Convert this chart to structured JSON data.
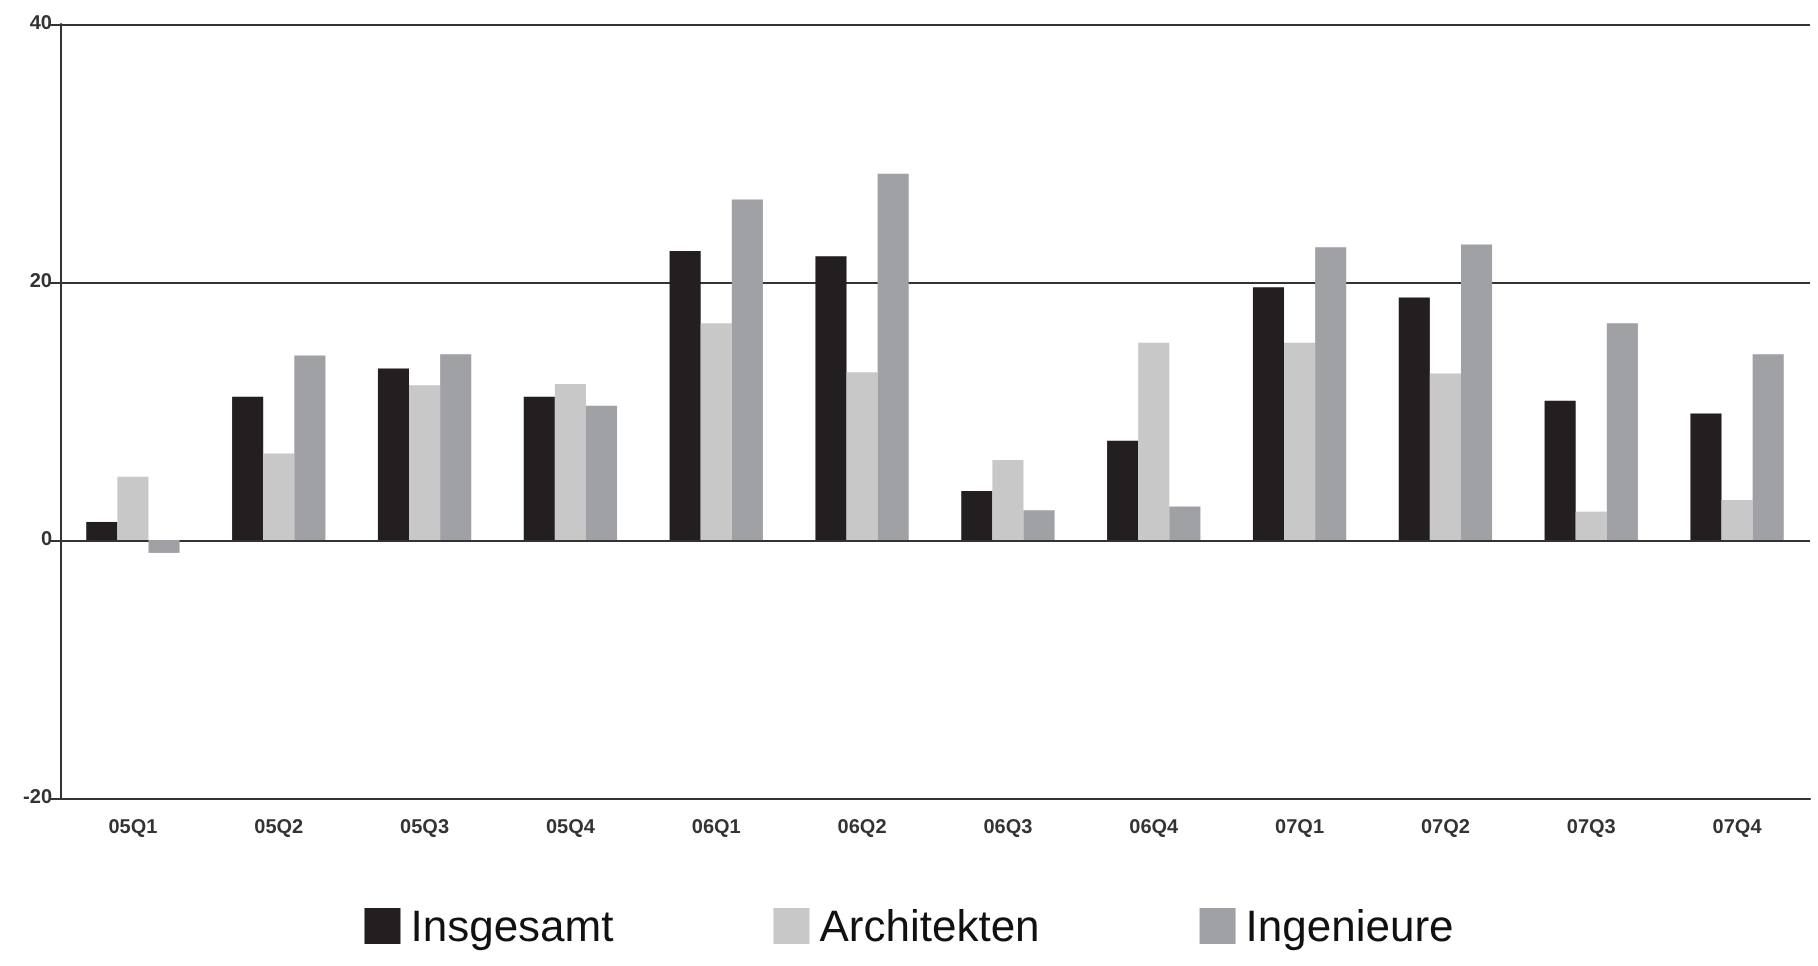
{
  "chart_data": {
    "type": "bar",
    "categories": [
      "05Q1",
      "05Q2",
      "05Q3",
      "05Q4",
      "06Q1",
      "06Q2",
      "06Q3",
      "06Q4",
      "07Q1",
      "07Q2",
      "07Q3",
      "07Q4"
    ],
    "series": [
      {
        "name": "Insgesamt",
        "color": "#231f20",
        "values": [
          1.4,
          11.1,
          13.3,
          11.1,
          22.4,
          22.0,
          3.8,
          7.7,
          19.6,
          18.8,
          10.8,
          9.8
        ]
      },
      {
        "name": "Architekten",
        "color": "#c8c8c8",
        "values": [
          4.9,
          6.7,
          12.0,
          12.1,
          16.8,
          13.0,
          6.2,
          15.3,
          15.3,
          12.9,
          2.2,
          3.1
        ]
      },
      {
        "name": "Ingenieure",
        "color": "#a0a1a5",
        "values": [
          -1.0,
          14.3,
          14.4,
          10.4,
          26.4,
          28.4,
          2.3,
          2.6,
          22.7,
          22.9,
          16.8,
          14.4
        ]
      }
    ],
    "ylim": [
      -20,
      40
    ],
    "yticks": [
      -20,
      0,
      20,
      40
    ],
    "grid": "y",
    "legend": "bottom"
  }
}
